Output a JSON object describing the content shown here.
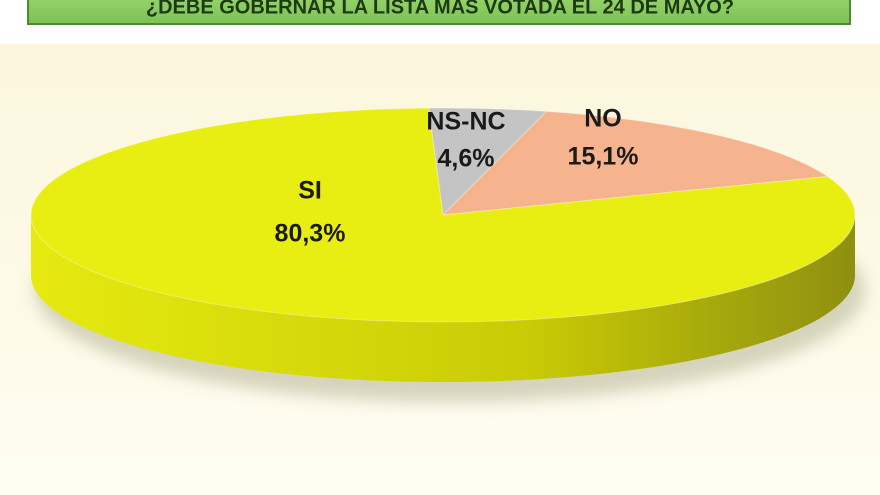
{
  "chart_data": {
    "type": "pie3d",
    "title": "¿DEBE GOBERNAR LA LISTA MAS VOTADA EL 24 DE MAYO?",
    "categories": [
      "NS-NC",
      "NO",
      "SI"
    ],
    "values": [
      4.6,
      15.1,
      80.3
    ],
    "value_labels": [
      "4,6%",
      "15,1%",
      "80,3%"
    ],
    "colors": [
      "#c4c4c4",
      "#f5b48e",
      "#e9ee12"
    ]
  }
}
